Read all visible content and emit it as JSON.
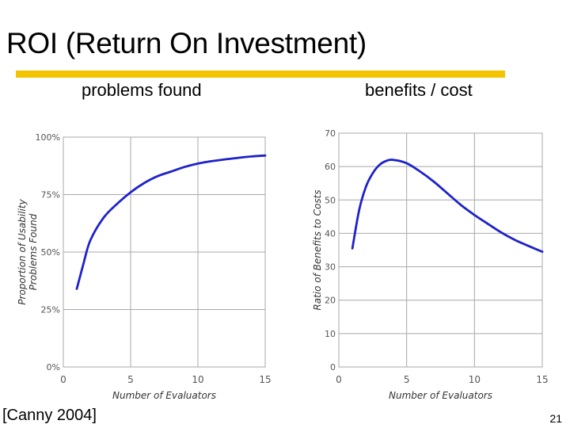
{
  "slide": {
    "title": "ROI (Return On Investment)",
    "citation": "[Canny 2004]",
    "page_number": "21",
    "accent_color": "#f3c300"
  },
  "chart_data": [
    {
      "type": "line",
      "title": "problems found",
      "xlabel": "Number of Evaluators",
      "ylabel_lines": [
        "Proportion of Usability",
        "Problems Found"
      ],
      "xlim": [
        0,
        15
      ],
      "ylim": [
        0,
        100
      ],
      "x_ticks": [
        0,
        5,
        10,
        15
      ],
      "y_ticks": [
        0,
        25,
        50,
        75,
        100
      ],
      "y_tick_labels": [
        "0%",
        "25%",
        "50%",
        "75%",
        "100%"
      ],
      "grid": true,
      "line_color": "#1e22c8",
      "x": [
        1,
        1.5,
        2,
        3,
        4,
        5,
        6,
        7,
        8,
        9,
        10,
        11,
        12,
        13,
        14,
        15
      ],
      "y": [
        34,
        45,
        55,
        65,
        71,
        76,
        80,
        83,
        85,
        87,
        88.5,
        89.5,
        90.3,
        91,
        91.6,
        92
      ]
    },
    {
      "type": "line",
      "title": "benefits / cost",
      "xlabel": "Number of Evaluators",
      "ylabel": "Ratio of Benefits to Costs",
      "xlim": [
        0,
        15
      ],
      "ylim": [
        0,
        70
      ],
      "x_ticks": [
        0,
        5,
        10,
        15
      ],
      "y_ticks": [
        0,
        10,
        20,
        30,
        40,
        50,
        60,
        70
      ],
      "y_tick_labels": [
        "0",
        "10",
        "20",
        "30",
        "40",
        "50",
        "60",
        "70"
      ],
      "grid": true,
      "line_color": "#1e22c8",
      "x": [
        1,
        1.5,
        2,
        2.5,
        3,
        3.5,
        4,
        5,
        6,
        7,
        8,
        9,
        10,
        11,
        12,
        13,
        14,
        15
      ],
      "y": [
        35.5,
        47,
        54,
        58,
        60.5,
        61.7,
        62,
        61,
        58.5,
        55.5,
        52,
        48.5,
        45.5,
        42.8,
        40.2,
        38,
        36.2,
        34.5
      ]
    }
  ]
}
